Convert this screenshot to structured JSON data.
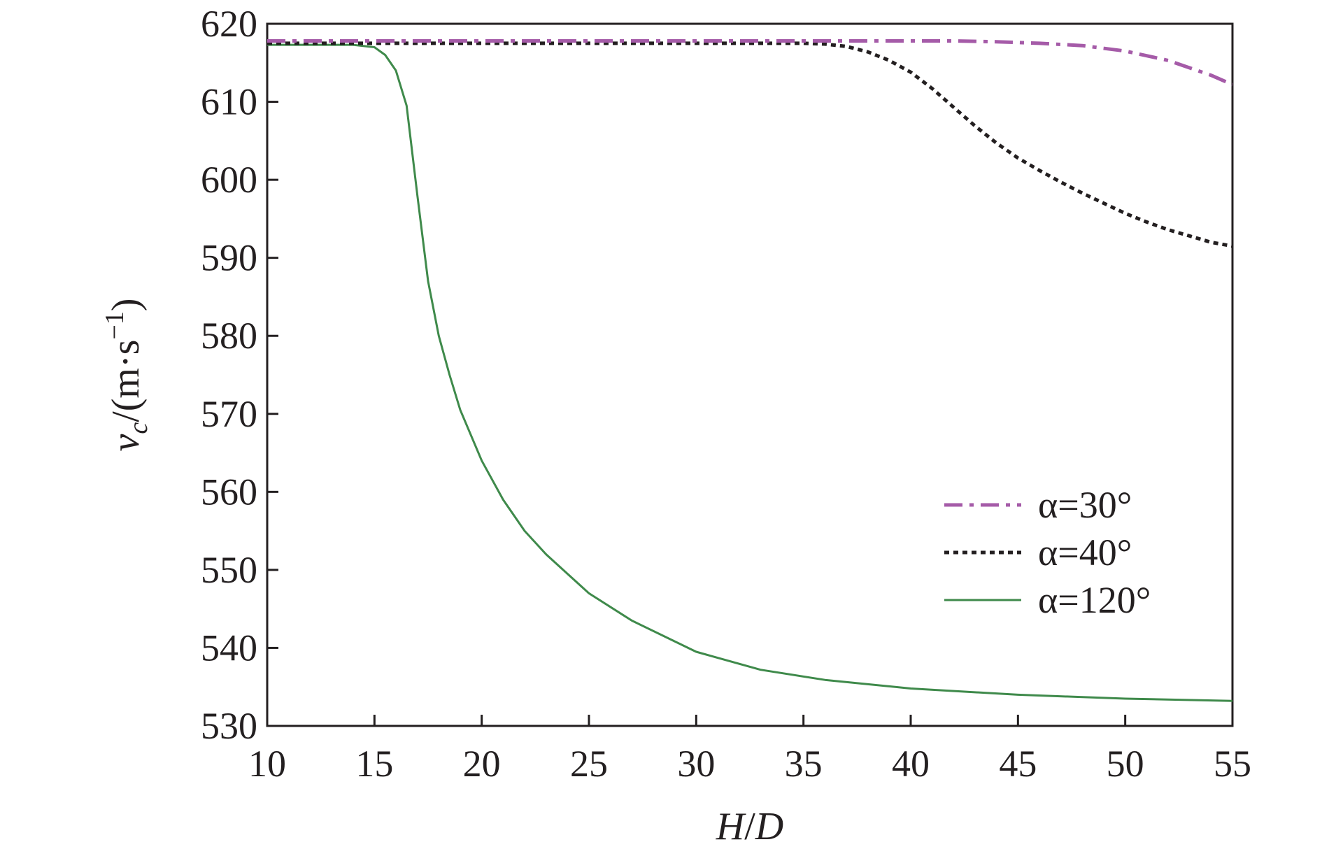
{
  "chart_data": {
    "type": "line",
    "xlabel": "H/D",
    "ylabel": "vc/(m·s−1)",
    "xlim": [
      10,
      55
    ],
    "ylim": [
      530,
      620
    ],
    "xticks": [
      10,
      15,
      20,
      25,
      30,
      35,
      40,
      45,
      50,
      55
    ],
    "yticks": [
      530,
      540,
      550,
      560,
      570,
      580,
      590,
      600,
      610,
      620
    ],
    "grid": false,
    "legend_position": "lower-right",
    "series": [
      {
        "name": "α=30°",
        "color": "#a55ba8",
        "style": "dash-dot",
        "x": [
          10,
          15,
          20,
          25,
          30,
          35,
          38,
          40,
          42,
          44,
          46,
          48,
          50,
          52,
          54,
          55
        ],
        "y": [
          617.8,
          617.8,
          617.8,
          617.8,
          617.8,
          617.8,
          617.8,
          617.8,
          617.8,
          617.7,
          617.5,
          617.2,
          616.5,
          615.3,
          613.4,
          612.2
        ]
      },
      {
        "name": "α=40°",
        "color": "#231f20",
        "style": "dotted",
        "x": [
          10,
          15,
          20,
          25,
          30,
          35,
          36,
          37,
          38,
          39,
          40,
          41,
          42,
          43,
          44,
          45,
          46,
          47,
          48,
          49,
          50,
          51,
          52,
          53,
          54,
          55
        ],
        "y": [
          617.5,
          617.5,
          617.5,
          617.5,
          617.5,
          617.5,
          617.4,
          617.1,
          616.4,
          615.3,
          613.8,
          611.7,
          609.3,
          606.9,
          604.7,
          602.8,
          601.2,
          599.7,
          598.3,
          597.0,
          595.7,
          594.6,
          593.6,
          592.8,
          592.0,
          591.5
        ]
      },
      {
        "name": "α=120°",
        "color": "#3f8a4b",
        "style": "solid",
        "x": [
          10,
          12,
          14,
          15,
          15.5,
          16,
          16.5,
          17,
          17.5,
          18,
          18.5,
          19,
          20,
          21,
          22,
          23,
          24,
          25,
          27,
          30,
          33,
          36,
          40,
          45,
          50,
          55
        ],
        "y": [
          617.3,
          617.3,
          617.3,
          617.0,
          616.0,
          614.0,
          609.5,
          598.0,
          587.0,
          580.0,
          575.0,
          570.5,
          564.0,
          559.0,
          555.0,
          552.0,
          549.5,
          547.0,
          543.5,
          539.5,
          537.2,
          535.9,
          534.8,
          534.0,
          533.5,
          533.2
        ]
      }
    ]
  }
}
